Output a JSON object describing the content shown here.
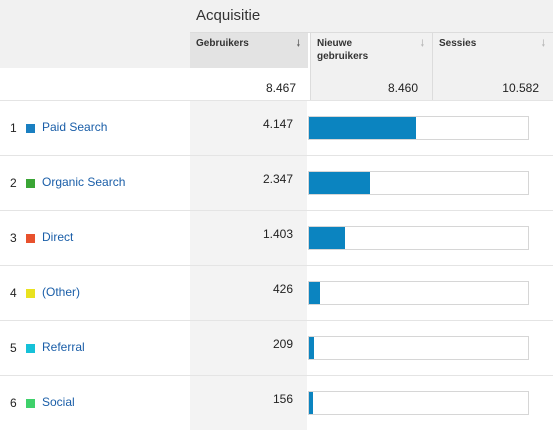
{
  "header": {
    "group_title": "Acquisitie",
    "columns": [
      {
        "label": "Gebruikers",
        "sort_icon": "arrow-down-icon",
        "active": true
      },
      {
        "label": "Nieuwe gebruikers",
        "sort_icon": "arrow-down-icon",
        "active": false
      },
      {
        "label": "Sessies",
        "sort_icon": "arrow-down-icon",
        "active": false
      }
    ]
  },
  "totals": {
    "gebruikers": "8.467",
    "nieuwe_gebruikers": "8.460",
    "sessies": "10.582"
  },
  "rows": [
    {
      "rank": "1",
      "channel": "Paid Search",
      "color": "#1a7fc1",
      "users": "4.147",
      "share": 0.4898
    },
    {
      "rank": "2",
      "channel": "Organic Search",
      "color": "#3aa535",
      "users": "2.347",
      "share": 0.2772
    },
    {
      "rank": "3",
      "channel": "Direct",
      "color": "#e8512d",
      "users": "1.403",
      "share": 0.1657
    },
    {
      "rank": "4",
      "channel": "(Other)",
      "color": "#e9e21f",
      "users": "426",
      "share": 0.0503
    },
    {
      "rank": "5",
      "channel": "Referral",
      "color": "#16c1d8",
      "users": "209",
      "share": 0.0247
    },
    {
      "rank": "6",
      "channel": "Social",
      "color": "#3fd16b",
      "users": "156",
      "share": 0.0184
    }
  ]
}
